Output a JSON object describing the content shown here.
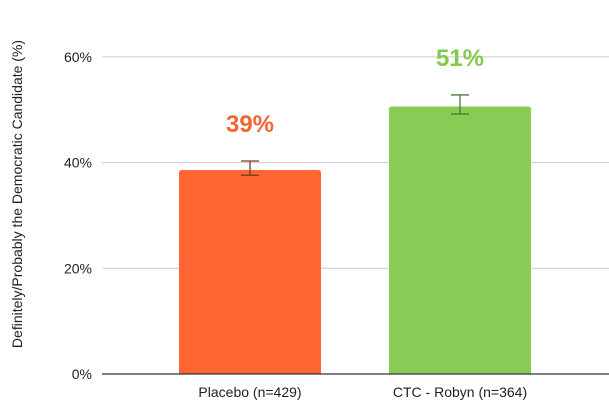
{
  "chart_data": {
    "type": "bar",
    "title": "",
    "xlabel": "",
    "ylabel": "Definitely/Probably the Democratic Candidate (%)",
    "ylim": [
      0,
      70
    ],
    "yticks": [
      {
        "value": 0,
        "label": "0%"
      },
      {
        "value": 20,
        "label": "20%"
      },
      {
        "value": 40,
        "label": "40%"
      },
      {
        "value": 60,
        "label": "60%"
      }
    ],
    "grid": true,
    "categories": [
      "Placebo (n=429)",
      "CTC - Robyn (n=364)"
    ],
    "values": [
      38.6,
      50.6
    ],
    "error_low": [
      37.6,
      49.2
    ],
    "error_high": [
      40.3,
      52.8
    ],
    "data_labels": [
      "39%",
      "51%"
    ],
    "colors": [
      "#ff6633",
      "#88cc55"
    ],
    "label_colors": [
      "#f26531",
      "#85c84f"
    ],
    "error_bar_colors": [
      "#7a3a20",
      "#4e7a30"
    ],
    "gridline_color": "#cccccc",
    "axis_color": "#333333"
  }
}
